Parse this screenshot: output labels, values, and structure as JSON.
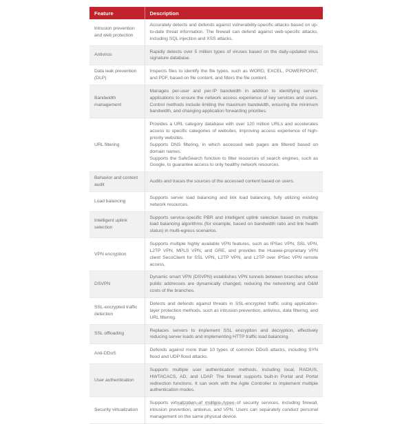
{
  "page": {
    "footer_link": "sdkjhw.en.alibaba.com"
  },
  "colors": {
    "header_bg": "#C2222B",
    "header_text": "#FFFFFF",
    "row_bg": "#FFFFFF",
    "row_alt_bg": "#F1F1F1",
    "body_text": "#6F6F6F",
    "row_border": "#E7E7E7",
    "column_divider": "#E2E2E2",
    "footer_text": "#BDBDBD"
  },
  "table": {
    "columns": [
      "Feature",
      "Description"
    ],
    "rows": [
      {
        "feature": "Intrusion prevention and web protection",
        "description": [
          "Accurately detects and defends against vulnerability-specific attacks based on up-to-date threat information. The firewall can defend against web-specific attacks, including SQL injection and XSS attacks."
        ]
      },
      {
        "feature": "Antivirus",
        "description": [
          "Rapidly detects over 5 million types of viruses based on the daily-updated virus signature database."
        ]
      },
      {
        "feature": "Data leak prevention (DLP)",
        "description": [
          "Inspects files to identify the file types, such as WORD, EXCEL, POWERPOINT, and PDF, based on file content, and filters the file content."
        ]
      },
      {
        "feature": "Bandwidth management",
        "description": [
          "Manages per-user and per-IP bandwidth in addition to identifying service applications to ensure the network access experience of key services and users. Control methods include limiting the maximum bandwidth, ensuring the minimum bandwidth, and changing application forwarding priorities."
        ]
      },
      {
        "feature": "URL filtering",
        "description": [
          "Provides a URL category database with over 120 million URLs and accelerates access to specific categories of websites, improving access experience of high-priority websites.",
          "Supports DNS filtering, in which accessed web pages are filtered based on domain names.",
          "Supports the SafeSearch function to filter resources of search engines, such as Google, to guarantee access to only healthy network resources."
        ]
      },
      {
        "feature": "Behavior and content audit",
        "description": [
          "Audits and traces the sources of the accessed content based on users."
        ]
      },
      {
        "feature": "Load balancing",
        "description": [
          "Supports server load balancing and link load balancing, fully utilizing existing network resources."
        ]
      },
      {
        "feature": "Intelligent uplink selection",
        "description": [
          "Supports service-specific PBR and intelligent uplink selection based on multiple load balancing algorithms (for example, based on bandwidth ratio and link health status) in multi-egress scenarios."
        ]
      },
      {
        "feature": "VPN encryption",
        "description": [
          "Supports multiple highly available VPN features, such as IPSec VPN, SSL VPN, L2TP VPN, MPLS VPN, and GRE, and provides the Huawei-proprietary VPN client SecoClient for SSL VPN, L2TP VPN, and L2TP over IPSec VPN remote access."
        ]
      },
      {
        "feature": "DSVPN",
        "description": [
          "Dynamic smart VPN (DSVPN) establishes VPN tunnels between branches whose public addresses are dynamically changed, reducing the networking and O&M costs of the branches."
        ]
      },
      {
        "feature": "SSL-encrypted traffic detection",
        "description": [
          "Detects and defends against threats in SSL-encrypted traffic using application-layer protection methods, such as intrusion prevention, antivirus, data filtering, and URL filtering."
        ]
      },
      {
        "feature": "SSL offloading",
        "description": [
          "Replaces servers to implement SSL encryption and decryption, effectively reducing server loads and implementing HTTP traffic load balancing."
        ]
      },
      {
        "feature": "Anti-DDoS",
        "description": [
          "Defends against more than 10 types of common DDoS attacks, including SYN flood and UDP flood attacks."
        ]
      },
      {
        "feature": "User authentication",
        "description": [
          "Supports multiple user authentication methods, including local, RADIUS, HWTACACS, AD, and LDAP. The firewall supports built-in Portal and Portal redirection functions. It can work with the Agile Controller to implement multiple authentication modes."
        ]
      },
      {
        "feature": "Security virtualization",
        "description": [
          "Supports virtualization of multiple types of security services, including firewall, intrusion prevention, antivirus, and VPN. Users can separately conduct personal management on the same physical device."
        ]
      }
    ]
  }
}
